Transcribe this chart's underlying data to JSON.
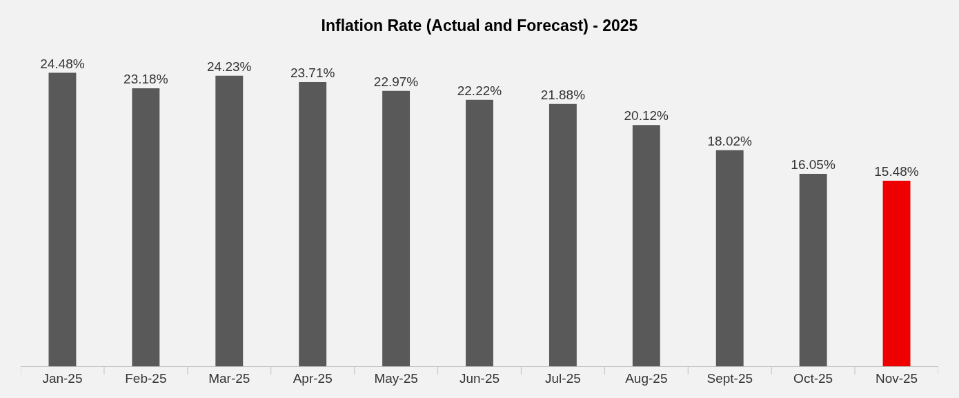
{
  "chart_data": {
    "type": "bar",
    "title": "Inflation Rate (Actual and Forecast) - 2025",
    "categories": [
      "Jan-25",
      "Feb-25",
      "Mar-25",
      "Apr-25",
      "May-25",
      "Jun-25",
      "Jul-25",
      "Aug-25",
      "Sept-25",
      "Oct-25",
      "Nov-25"
    ],
    "values": [
      24.48,
      23.18,
      24.23,
      23.71,
      22.97,
      22.22,
      21.88,
      20.12,
      18.02,
      16.05,
      15.48
    ],
    "value_labels": [
      "24.48%",
      "23.18%",
      "24.23%",
      "23.71%",
      "22.97%",
      "22.22%",
      "21.88%",
      "20.12%",
      "18.02%",
      "16.05%",
      "15.48%"
    ],
    "colors": [
      "#595959",
      "#595959",
      "#595959",
      "#595959",
      "#595959",
      "#595959",
      "#595959",
      "#595959",
      "#595959",
      "#595959",
      "#ee0000"
    ],
    "tick_labels": "x"
  }
}
